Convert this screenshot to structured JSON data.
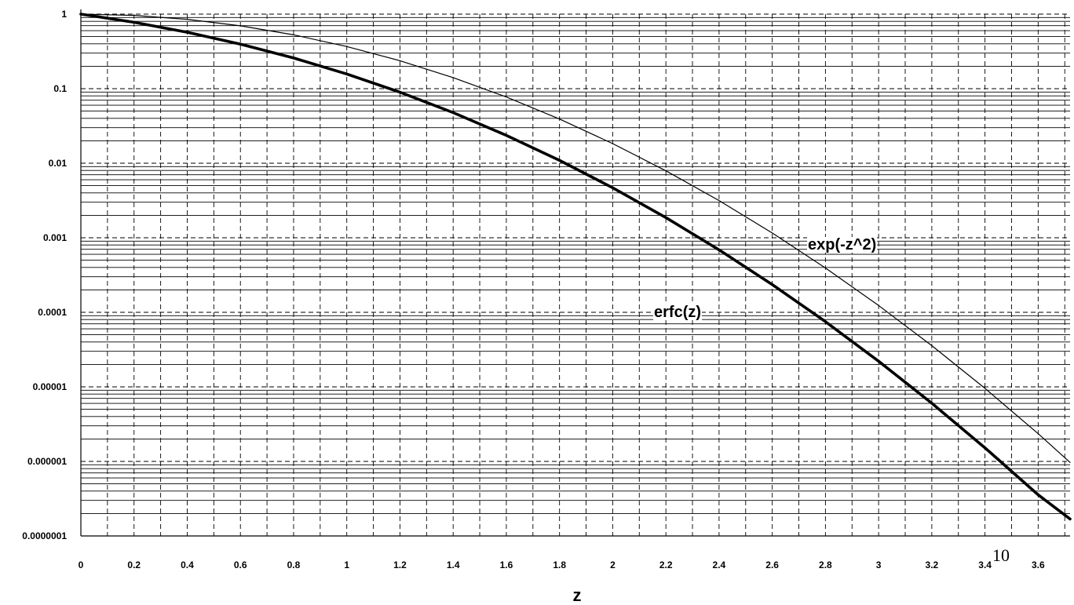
{
  "chart_data": {
    "type": "line",
    "title": "",
    "xlabel": "z",
    "ylabel": "",
    "yscale": "log",
    "xlim": [
      0,
      3.72
    ],
    "ylim": [
      1e-07,
      1
    ],
    "grid": true,
    "x_ticks": [
      0,
      0.2,
      0.4,
      0.6,
      0.8,
      1,
      1.2,
      1.4,
      1.6,
      1.8,
      2,
      2.2,
      2.4,
      2.6,
      2.8,
      3,
      3.2,
      3.4,
      3.6
    ],
    "x_tick_labels": [
      "0",
      "0.2",
      "0.4",
      "0.6",
      "0.8",
      "1",
      "1.2",
      "1.4",
      "1.6",
      "1.8",
      "2",
      "2.2",
      "2.4",
      "2.6",
      "2.8",
      "3",
      "3.2",
      "3.4",
      "3.6"
    ],
    "y_ticks": [
      1,
      0.1,
      0.01,
      0.001,
      0.0001,
      1e-05,
      1e-06,
      1e-07
    ],
    "y_tick_labels": [
      "1",
      "0.1",
      "0.01",
      "0.001",
      "0.0001",
      "0.00001",
      "0.000001",
      "0.0000001"
    ],
    "x": [
      0,
      0.2,
      0.4,
      0.6,
      0.8,
      1.0,
      1.2,
      1.4,
      1.6,
      1.8,
      2.0,
      2.2,
      2.4,
      2.6,
      2.8,
      3.0,
      3.2,
      3.4,
      3.6,
      3.72
    ],
    "series": [
      {
        "name": "erfc(z)",
        "style": "thick",
        "values": [
          1.0,
          0.7773,
          0.5716,
          0.3961,
          0.2579,
          0.1573,
          0.08969,
          0.04771,
          0.02365,
          0.01091,
          0.004678,
          0.001863,
          0.0006885,
          0.000236,
          7.501e-05,
          2.209e-05,
          6.026e-06,
          1.522e-06,
          3.559e-07,
          1.688e-07
        ]
      },
      {
        "name": "exp(-z^2)",
        "style": "thin",
        "values": [
          1.0,
          0.9608,
          0.8521,
          0.6977,
          0.5273,
          0.3679,
          0.2369,
          0.1409,
          0.0773,
          0.03916,
          0.01832,
          0.007907,
          0.003151,
          0.001159,
          0.0003937,
          0.0001234,
          3.571e-05,
          9.54e-06,
          2.352e-06,
          9.681e-07
        ]
      }
    ]
  },
  "page_number": "10"
}
